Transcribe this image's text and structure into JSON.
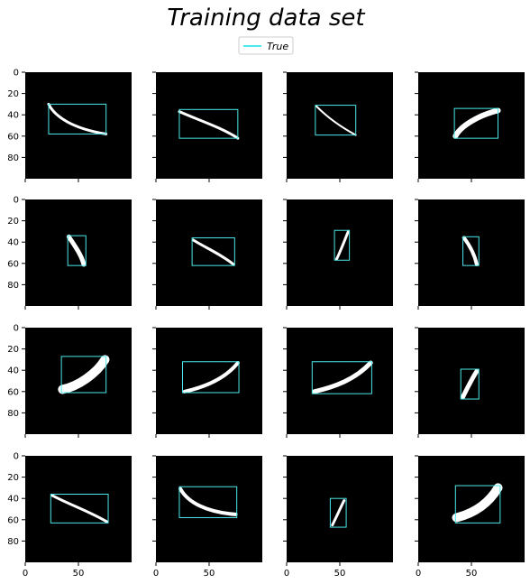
{
  "chart_data": {
    "type": "image-grid",
    "title": "Training data set",
    "legend": [
      {
        "label": "True",
        "color": "#4de8ea"
      }
    ],
    "legend_position": "top-center",
    "rows": 4,
    "cols": 4,
    "xlim": [
      0,
      100
    ],
    "ylim": [
      100,
      0
    ],
    "xticks": [
      0,
      50
    ],
    "yticks": [
      0,
      20,
      40,
      60,
      80
    ],
    "shared_x": true,
    "shared_y": true,
    "background_color": "#000000",
    "stroke_color": "#ffffff",
    "box_color": "#4de8ea",
    "panels": [
      {
        "box": [
          22,
          30,
          76,
          58
        ],
        "curve": [
          [
            22,
            30
          ],
          [
            28,
            42
          ],
          [
            45,
            53
          ],
          [
            76,
            58
          ]
        ],
        "thickness": 3
      },
      {
        "box": [
          22,
          35,
          77,
          62
        ],
        "curve": [
          [
            22,
            37
          ],
          [
            40,
            45
          ],
          [
            62,
            52
          ],
          [
            77,
            62
          ]
        ],
        "thickness": 3
      },
      {
        "box": [
          27,
          31,
          65,
          59
        ],
        "curve": [
          [
            28,
            32
          ],
          [
            38,
            42
          ],
          [
            52,
            52
          ],
          [
            65,
            59
          ]
        ],
        "thickness": 2
      },
      {
        "box": [
          34,
          34,
          75,
          62
        ],
        "curve": [
          [
            35,
            60
          ],
          [
            40,
            50
          ],
          [
            58,
            40
          ],
          [
            75,
            36
          ]
        ],
        "thickness": 6
      },
      {
        "box": [
          40,
          34,
          57,
          62
        ],
        "curve": [
          [
            41,
            35
          ],
          [
            46,
            43
          ],
          [
            53,
            52
          ],
          [
            55,
            61
          ]
        ],
        "thickness": 5
      },
      {
        "box": [
          34,
          36,
          74,
          62
        ],
        "curve": [
          [
            35,
            38
          ],
          [
            48,
            46
          ],
          [
            62,
            52
          ],
          [
            73,
            61
          ]
        ],
        "thickness": 3
      },
      {
        "box": [
          45,
          29,
          59,
          57
        ],
        "curve": [
          [
            47,
            56
          ],
          [
            51,
            48
          ],
          [
            55,
            37
          ],
          [
            58,
            30
          ]
        ],
        "thickness": 3
      },
      {
        "box": [
          42,
          35,
          57,
          62
        ],
        "curve": [
          [
            43,
            36
          ],
          [
            49,
            44
          ],
          [
            53,
            52
          ],
          [
            55,
            61
          ]
        ],
        "thickness": 4
      },
      {
        "box": [
          34,
          27,
          76,
          61
        ],
        "curve": [
          [
            35,
            58
          ],
          [
            50,
            55
          ],
          [
            67,
            43
          ],
          [
            75,
            30
          ]
        ],
        "thickness": 10
      },
      {
        "box": [
          25,
          32,
          78,
          61
        ],
        "curve": [
          [
            27,
            60
          ],
          [
            45,
            56
          ],
          [
            65,
            48
          ],
          [
            77,
            33
          ]
        ],
        "thickness": 4
      },
      {
        "box": [
          24,
          32,
          80,
          62
        ],
        "curve": [
          [
            26,
            60
          ],
          [
            44,
            56
          ],
          [
            64,
            49
          ],
          [
            79,
            33
          ]
        ],
        "thickness": 5
      },
      {
        "box": [
          40,
          39,
          57,
          67
        ],
        "curve": [
          [
            42,
            65
          ],
          [
            46,
            57
          ],
          [
            51,
            47
          ],
          [
            55,
            41
          ]
        ],
        "thickness": 5
      },
      {
        "box": [
          24,
          36,
          78,
          63
        ],
        "curve": [
          [
            25,
            37
          ],
          [
            42,
            46
          ],
          [
            60,
            52
          ],
          [
            77,
            62
          ]
        ],
        "thickness": 3
      },
      {
        "box": [
          22,
          29,
          76,
          58
        ],
        "curve": [
          [
            23,
            31
          ],
          [
            30,
            44
          ],
          [
            48,
            53
          ],
          [
            75,
            55
          ]
        ],
        "thickness": 4
      },
      {
        "box": [
          41,
          40,
          56,
          67
        ],
        "curve": [
          [
            43,
            65
          ],
          [
            47,
            57
          ],
          [
            51,
            48
          ],
          [
            54,
            42
          ]
        ],
        "thickness": 3
      },
      {
        "box": [
          35,
          28,
          77,
          63
        ],
        "curve": [
          [
            36,
            58
          ],
          [
            52,
            54
          ],
          [
            66,
            45
          ],
          [
            75,
            30
          ]
        ],
        "thickness": 10
      }
    ]
  }
}
